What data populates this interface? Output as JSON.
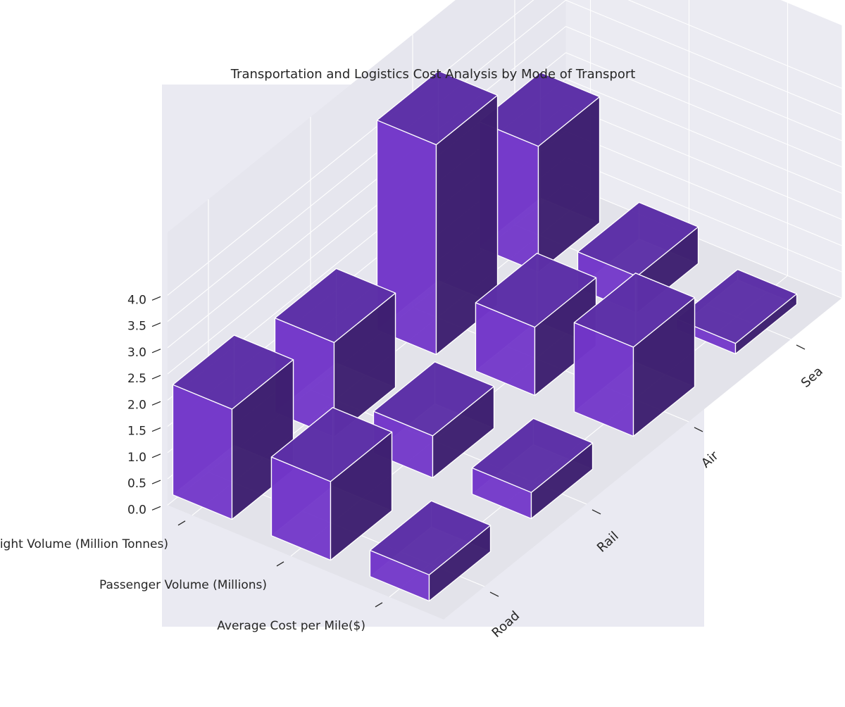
{
  "chart_data": {
    "type": "bar3d",
    "title": "Transportation and Logistics Cost Analysis by Mode of Transport",
    "x_categories": [
      "Freight Volume (Million Tonnes)",
      "Passenger Volume (Millions)",
      "Average Cost per Mile($)"
    ],
    "y_categories": [
      "Road",
      "Rail",
      "Air",
      "Sea"
    ],
    "z_ticks": [
      "0.0",
      "0.5",
      "1.0",
      "1.5",
      "2.0",
      "2.5",
      "3.0",
      "3.5",
      "4.0"
    ],
    "zlim": [
      0,
      4.0
    ],
    "grid": true,
    "series": [
      {
        "name": "Road",
        "values": [
          2.1,
          1.5,
          0.5
        ]
      },
      {
        "name": "Rail",
        "values": [
          1.8,
          0.8,
          0.5
        ]
      },
      {
        "name": "Air",
        "values": [
          4.0,
          1.3,
          1.7
        ]
      },
      {
        "name": "Sea",
        "values": [
          2.4,
          0.7,
          0.2
        ]
      }
    ],
    "colors": {
      "pane_back": "#ebebf2",
      "pane_side": "#e6e6ee",
      "pane_floor": "#e3e3ea",
      "background": "#eaeaf2",
      "grid": "#ffffff",
      "bar_top": "#5c2fa6",
      "bar_front": "#7236c9",
      "bar_right": "#3d1f6e",
      "bar_edge": "#ffffff"
    }
  }
}
